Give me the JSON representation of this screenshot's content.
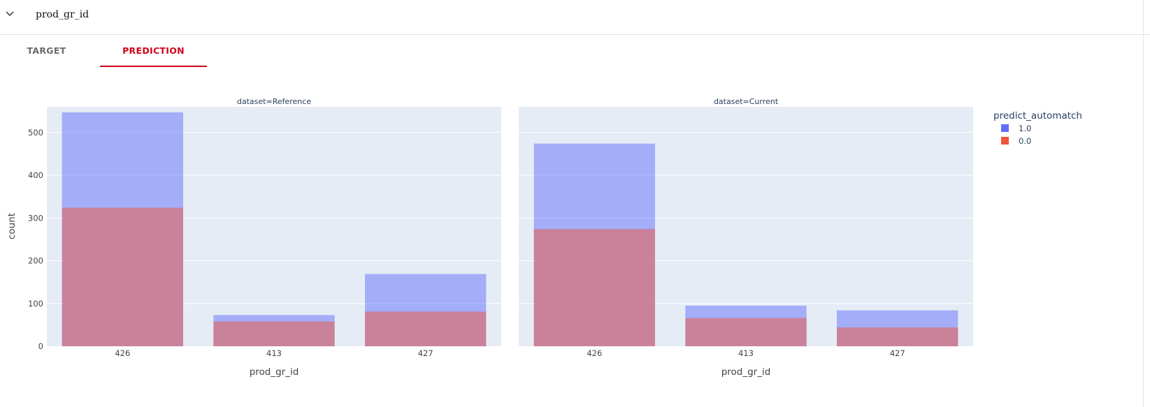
{
  "header": {
    "title": "prod_gr_id",
    "toggle_icon": "chevron-down-icon"
  },
  "tabs": [
    {
      "label": "TARGET",
      "active": false
    },
    {
      "label": "PREDICTION",
      "active": true
    }
  ],
  "colors": {
    "series_1": "#636efa",
    "series_0": "#ef553b",
    "plot_bg": "#e5ecf6",
    "active_tab": "#d0021b"
  },
  "chart_data": {
    "type": "bar",
    "barmode": "overlay",
    "bar_opacity": 0.5,
    "xlabel": "prod_gr_id",
    "ylabel": "count",
    "ylim": [
      0,
      560
    ],
    "yticks": [
      0,
      100,
      200,
      300,
      400,
      500
    ],
    "categories": [
      "426",
      "413",
      "427"
    ],
    "legend": {
      "title": "predict_automatch",
      "position": "top-right"
    },
    "facets": [
      {
        "title": "dataset=Reference",
        "series": [
          {
            "name": "1.0",
            "values": [
              547,
              73,
              169
            ]
          },
          {
            "name": "0.0",
            "values": [
              324,
              58,
              81
            ]
          }
        ]
      },
      {
        "title": "dataset=Current",
        "series": [
          {
            "name": "1.0",
            "values": [
              474,
              95,
              84
            ]
          },
          {
            "name": "0.0",
            "values": [
              274,
              66,
              44
            ]
          }
        ]
      }
    ]
  }
}
